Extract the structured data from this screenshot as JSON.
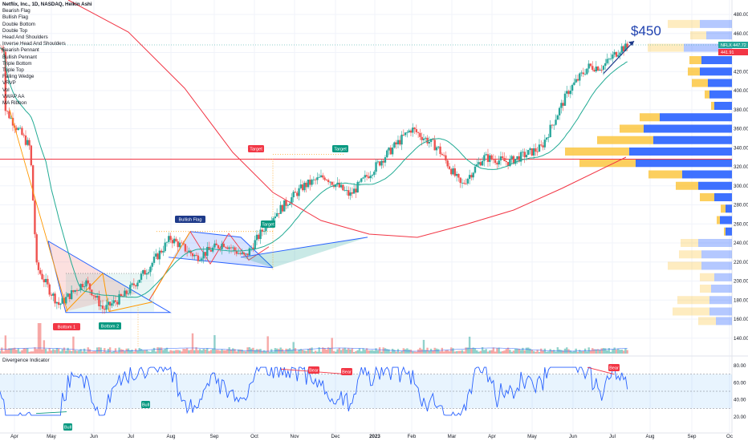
{
  "chart_title": "Netflix, Inc., 1D, NASDAQ, Heikin Ashi",
  "indicator_list": [
    "Bearish Flag",
    "Bullish Flag",
    "Double Bottom",
    "Double Top",
    "Head And Shoulders",
    "Inverse Head And Shoulders",
    "Bearish Pennant",
    "Bullish Pennant",
    "Triple Bottom",
    "Triple Top",
    "Falling Wedge",
    "VRVP",
    "Vol",
    "VWAP AA",
    "MA Ribbon"
  ],
  "price_scale": {
    "ticks": [
      "480.00",
      "460.00",
      "440.00",
      "420.00",
      "400.00",
      "380.00",
      "360.00",
      "340.00",
      "320.00",
      "300.00",
      "280.00",
      "260.00",
      "240.00",
      "220.00",
      "200.00",
      "180.00",
      "160.00",
      "140.00"
    ]
  },
  "price_badges": [
    {
      "label": "NFLX",
      "value": "447.72",
      "color": "#26a69a"
    },
    {
      "label": "",
      "value": "441.91",
      "color": "#f23645"
    }
  ],
  "time_axis": {
    "labels": [
      "Apr",
      "May",
      "Jun",
      "Jul",
      "Aug",
      "Sep",
      "Oct",
      "Nov",
      "Dec",
      "2023",
      "Feb",
      "Mar",
      "Apr",
      "May",
      "Jun",
      "Jul",
      "Aug",
      "Sep",
      "Oc"
    ]
  },
  "annotations": {
    "price_target": "$450",
    "bullish_flag": "Bullish Flag",
    "bottom1": "Bottom 1",
    "bottom2": "Bottom 2",
    "target_labels": [
      "Target",
      "Target",
      "Target"
    ]
  },
  "divergence": {
    "title": "Divergence Indicator",
    "ticks": [
      "80.00",
      "60.00",
      "40.00",
      "20.00"
    ],
    "bear_labels": [
      "Bear",
      "Bear",
      "Bear"
    ],
    "bull_labels": [
      "Bull",
      "Bull"
    ]
  },
  "colors": {
    "up": "#26a69a",
    "down": "#ef5350",
    "ma_green": "#22ab94",
    "ma_red": "#f23645",
    "blue": "#2962ff",
    "orange": "#ff9800",
    "band": "#2196f3"
  },
  "chart_data": {
    "type": "candlestick",
    "title": "Netflix, Inc., 1D, NASDAQ, Heikin Ashi",
    "x_range": [
      "2022-04",
      "2023-10"
    ],
    "ylim": [
      140,
      480
    ],
    "series": [
      {
        "name": "",
        "description": "",
        "approx_path": [
          [
            "2022-04-01",
            380
          ],
          [
            "2022-04-20",
            340
          ],
          [
            "2022-04-25",
            215
          ],
          [
            "2022-05-05",
            190
          ],
          [
            "2022-05-12",
            175
          ],
          [
            "2022-06-01",
            200
          ],
          [
            "2022-06-15",
            170
          ],
          [
            "2022-07-01",
            185
          ],
          [
            "2022-07-20",
            215
          ],
          [
            "2022-08-05",
            245
          ],
          [
            "2022-08-25",
            225
          ],
          [
            "2022-09-15",
            240
          ],
          [
            "2022-10-01",
            225
          ],
          [
            "2022-10-20",
            265
          ],
          [
            "2022-11-15",
            300
          ],
          [
            "2022-12-01",
            310
          ],
          [
            "2022-12-20",
            290
          ],
          [
            "2023-01-15",
            330
          ],
          [
            "2023-02-05",
            360
          ],
          [
            "2023-02-25",
            340
          ],
          [
            "2023-03-15",
            300
          ],
          [
            "2023-04-01",
            330
          ],
          [
            "2023-04-20",
            325
          ],
          [
            "2023-05-15",
            340
          ],
          [
            "2023-06-05",
            400
          ],
          [
            "2023-06-20",
            425
          ],
          [
            "2023-07-01",
            425
          ],
          [
            "2023-07-15",
            445
          ]
        ]
      }
    ]
  }
}
